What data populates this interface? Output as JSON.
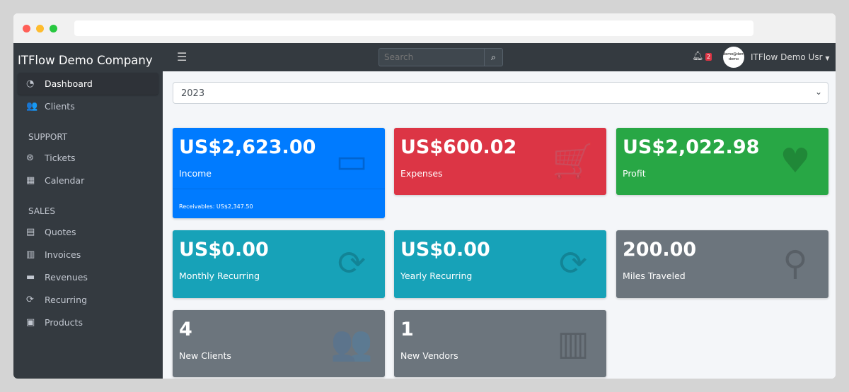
{
  "browser": {
    "dots": [
      "#ff5f57",
      "#febc2e",
      "#28c840"
    ]
  },
  "sidebar": {
    "brand": "ITFlow Demo Company",
    "items": [
      {
        "label": "Dashboard",
        "icon": "tachometer-icon",
        "glyph": "◔",
        "active": true
      },
      {
        "label": "Clients",
        "icon": "users-icon",
        "glyph": "👥"
      }
    ],
    "sections": [
      {
        "header": "SUPPORT",
        "items": [
          {
            "label": "Tickets",
            "icon": "life-ring-icon",
            "glyph": "⊛"
          },
          {
            "label": "Calendar",
            "icon": "calendar-icon",
            "glyph": "▦"
          }
        ]
      },
      {
        "header": "SALES",
        "items": [
          {
            "label": "Quotes",
            "icon": "file-icon",
            "glyph": "▤"
          },
          {
            "label": "Invoices",
            "icon": "file-invoice-icon",
            "glyph": "▥"
          },
          {
            "label": "Revenues",
            "icon": "credit-card-icon",
            "glyph": "▬"
          },
          {
            "label": "Recurring",
            "icon": "sync-icon",
            "glyph": "⟳"
          },
          {
            "label": "Products",
            "icon": "box-icon",
            "glyph": "▣"
          }
        ]
      }
    ]
  },
  "navbar": {
    "search_placeholder": "Search",
    "notifications": "2",
    "avatar_text": "demo@demo demo",
    "user": "ITFlow Demo Usr"
  },
  "filter": {
    "year": "2023"
  },
  "cards": [
    {
      "value": "US$2,623.00",
      "label": "Income",
      "footer": "Receivables: US$2,347.50",
      "color": "#007bff",
      "icon": "credit-card-icon",
      "glyph": "▭"
    },
    {
      "value": "US$600.02",
      "label": "Expenses",
      "color": "#dc3545",
      "icon": "shopping-cart-icon",
      "glyph": "🛒"
    },
    {
      "value": "US$2,022.98",
      "label": "Profit",
      "color": "#28a745",
      "icon": "heart-icon",
      "glyph": "♥"
    },
    {
      "value": "US$0.00",
      "label": "Monthly Recurring",
      "color": "#17a2b8",
      "icon": "sync-icon",
      "glyph": "⟳"
    },
    {
      "value": "US$0.00",
      "label": "Yearly Recurring",
      "color": "#17a2b8",
      "icon": "sync-icon",
      "glyph": "⟳"
    },
    {
      "value": "200.00",
      "label": "Miles Traveled",
      "color": "#6c757d",
      "icon": "route-icon",
      "glyph": "⚲"
    },
    {
      "value": "4",
      "label": "New Clients",
      "color": "#6c757d",
      "icon": "users-icon",
      "glyph": "👥"
    },
    {
      "value": "1",
      "label": "New Vendors",
      "color": "#6c757d",
      "icon": "building-icon",
      "glyph": "▥"
    }
  ]
}
